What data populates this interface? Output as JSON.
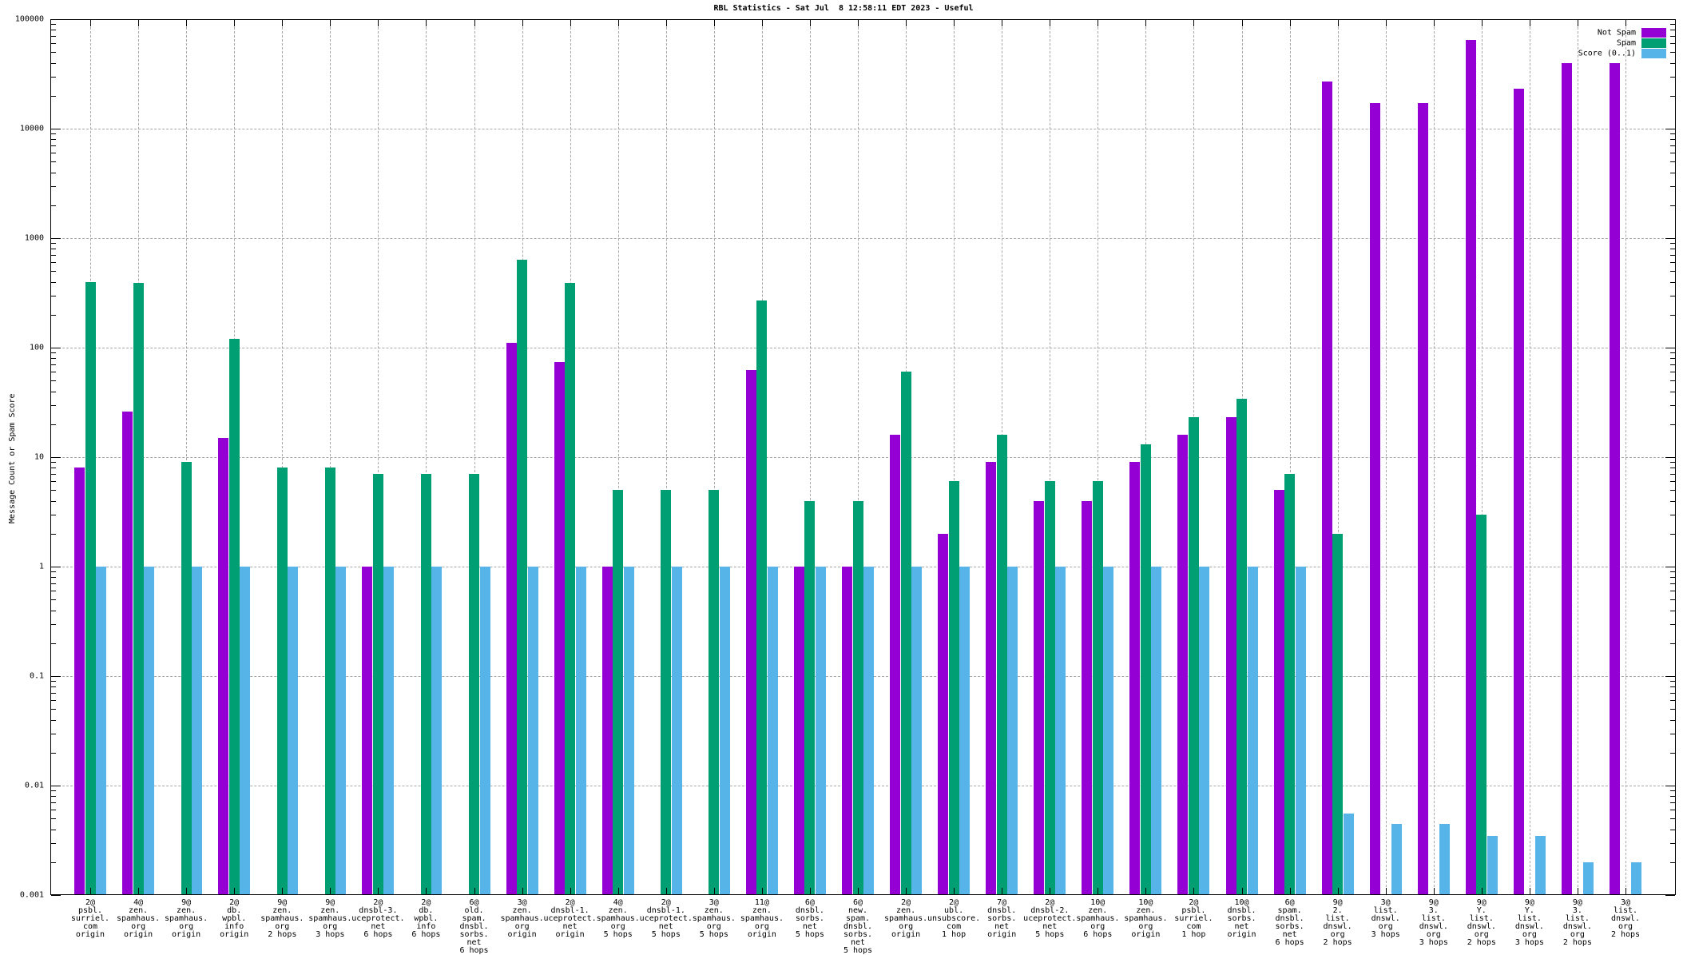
{
  "title": "RBL Statistics - Sat Jul  8 12:58:11 EDT 2023 - Useful",
  "y_axis": {
    "label": "Message Count or Spam Score",
    "scale": "log",
    "ticks": [
      "100000",
      "10000",
      "1000",
      "100",
      "10",
      "1",
      "0.1",
      "0.01",
      "0.001"
    ]
  },
  "legend": {
    "position": "top-right",
    "entries": [
      {
        "label": "Not Spam",
        "color": "#9400d3"
      },
      {
        "label": "Spam",
        "color": "#009e73"
      },
      {
        "label": "Score (0..1)",
        "color": "#56b4e9"
      }
    ]
  },
  "chart_data": {
    "type": "bar",
    "title": "RBL Statistics - Sat Jul  8 12:58:11 EDT 2023 - Useful",
    "xlabel": "",
    "ylabel": "Message Count or Spam Score",
    "yscale": "log",
    "ylim": [
      0.001,
      100000
    ],
    "grid": true,
    "legend_position": "top-right",
    "categories": [
      "2@\npsbl.\nsurriel.\ncom\norigin",
      "4@\nzen.\nspamhaus.\norg\norigin",
      "9@\nzen.\nspamhaus.\norg\norigin",
      "2@\ndb.\nwpbl.\ninfo\norigin",
      "9@\nzen.\nspamhaus.\norg\n2 hops",
      "9@\nzen.\nspamhaus.\norg\n3 hops",
      "2@\ndnsbl-3.\nuceprotect.\nnet\n6 hops",
      "2@\ndb.\nwpbl.\ninfo\n6 hops",
      "6@\nold.\nspam.\ndnsbl.\nsorbs.\nnet\n6 hops",
      "3@\nzen.\nspamhaus.\norg\norigin",
      "2@\ndnsbl-1.\nuceprotect.\nnet\norigin",
      "4@\nzen.\nspamhaus.\norg\n5 hops",
      "2@\ndnsbl-1.\nuceprotect.\nnet\n5 hops",
      "3@\nzen.\nspamhaus.\norg\n5 hops",
      "11@\nzen.\nspamhaus.\norg\norigin",
      "6@\ndnsbl.\nsorbs.\nnet\n5 hops",
      "6@\nnew.\nspam.\ndnsbl.\nsorbs.\nnet\n5 hops",
      "2@\nzen.\nspamhaus.\norg\norigin",
      "2@\nubl.\nunsubscore.\ncom\n1 hop",
      "7@\ndnsbl.\nsorbs.\nnet\norigin",
      "2@\ndnsbl-2.\nuceprotect.\nnet\n5 hops",
      "10@\nzen.\nspamhaus.\norg\n6 hops",
      "10@\nzen.\nspamhaus.\norg\norigin",
      "2@\npsbl.\nsurriel.\ncom\n1 hop",
      "10@\ndnsbl.\nsorbs.\nnet\norigin",
      "6@\nspam.\ndnsbl.\nsorbs.\nnet\n6 hops",
      "9@\n2.\nlist.\ndnswl.\norg\n2 hops",
      "3@\nlist.\ndnswl.\norg\n3 hops",
      "9@\n3.\nlist.\ndnswl.\norg\n3 hops",
      "9@\nY.\nlist.\ndnswl.\norg\n2 hops",
      "9@\nY.\nlist.\ndnswl.\norg\n3 hops",
      "9@\n3.\nlist.\ndnswl.\norg\n2 hops",
      "3@\nlist.\ndnswl.\norg\n2 hops"
    ],
    "series": [
      {
        "name": "Not Spam",
        "color": "#9400d3",
        "values": [
          8,
          26,
          null,
          15,
          null,
          null,
          1,
          null,
          null,
          110,
          74,
          1,
          null,
          null,
          62,
          1,
          1,
          16,
          2,
          9,
          4,
          4,
          9,
          16,
          23,
          5,
          27000,
          17000,
          17000,
          65000,
          23000,
          40000,
          40000
        ]
      },
      {
        "name": "Spam",
        "color": "#009e73",
        "values": [
          400,
          390,
          9,
          120,
          8,
          8,
          7,
          7,
          7,
          640,
          390,
          5,
          5,
          5,
          270,
          4,
          4,
          60,
          6,
          16,
          6,
          6,
          13,
          23,
          34,
          7,
          2,
          null,
          null,
          3,
          null,
          null,
          null
        ]
      },
      {
        "name": "Score (0..1)",
        "color": "#56b4e9",
        "values": [
          1,
          1,
          1,
          1,
          1,
          1,
          1,
          1,
          1,
          1,
          1,
          1,
          1,
          1,
          1,
          1,
          1,
          1,
          1,
          1,
          1,
          1,
          1,
          1,
          1,
          1,
          0.0056,
          0.0045,
          0.0045,
          0.0035,
          0.0035,
          0.002,
          0.002
        ]
      }
    ]
  }
}
